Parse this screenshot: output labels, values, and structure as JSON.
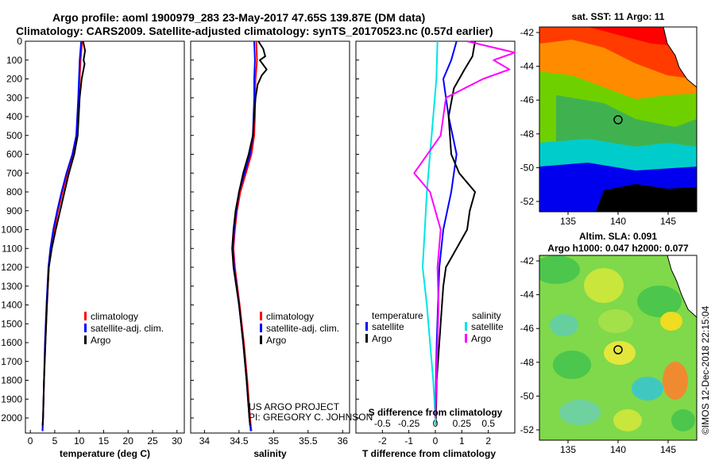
{
  "titles": {
    "line1": "Argo profile: aoml 1900979_283 23-May-2017 47.65S 139.87E (DM data)",
    "line2": "Climatology: CARS2009. Satellite-adjusted climatology: synTS_20170523.nc (0.57d earlier)"
  },
  "colors": {
    "climatology": "#ff0000",
    "satellite": "#0000ff",
    "argo": "#000000",
    "sat_salinity": "#00e5e5",
    "argo_salinity": "#ff00ff"
  },
  "depth_ticks": [
    "0",
    "100",
    "200",
    "300",
    "400",
    "500",
    "600",
    "700",
    "800",
    "900",
    "1000",
    "1100",
    "1200",
    "1300",
    "1400",
    "1500",
    "1600",
    "1700",
    "1800",
    "1900",
    "2000"
  ],
  "chart_data": [
    {
      "type": "line",
      "id": "temperature",
      "xlabel": "temperature (deg C)",
      "xlim": [
        -1,
        31.5
      ],
      "ylim": [
        0,
        2080
      ],
      "xticks": [
        0,
        5,
        10,
        15,
        20,
        25,
        30
      ],
      "legend": {
        "placement": "bottom-right",
        "entries": [
          "climatology",
          "satellite-adj. clim.",
          "Argo"
        ]
      },
      "series": [
        {
          "name": "climatology",
          "depth": [
            0,
            100,
            300,
            500,
            600,
            700,
            800,
            900,
            1000,
            1100,
            1200,
            1400,
            1600,
            1800,
            2000,
            2070
          ],
          "values": [
            10.6,
            10.3,
            9.9,
            9.5,
            8.8,
            7.6,
            6.6,
            5.7,
            4.9,
            4.2,
            3.8,
            3.4,
            3.1,
            2.8,
            2.6,
            2.5
          ]
        },
        {
          "name": "satellite-adj. clim.",
          "depth": [
            0,
            100,
            300,
            500,
            600,
            700,
            800,
            900,
            1000,
            1100,
            1200,
            1400,
            1600,
            1800,
            2000,
            2070
          ],
          "values": [
            10.4,
            10.1,
            9.8,
            9.4,
            8.6,
            7.4,
            6.4,
            5.5,
            4.7,
            4.1,
            3.7,
            3.3,
            3.0,
            2.8,
            2.6,
            2.5
          ]
        },
        {
          "name": "Argo",
          "depth": [
            0,
            50,
            100,
            120,
            200,
            300,
            500,
            600,
            700,
            800,
            900,
            1000,
            1100,
            1200,
            1400,
            1600,
            1800,
            2000,
            2040
          ],
          "values": [
            10.8,
            11.2,
            10.9,
            11.1,
            10.5,
            10.1,
            9.7,
            9.0,
            7.9,
            7.0,
            6.1,
            5.2,
            4.4,
            3.8,
            3.4,
            3.1,
            2.8,
            2.6,
            2.5
          ]
        }
      ]
    },
    {
      "type": "line",
      "id": "salinity",
      "xlabel": "salinity",
      "xlim": [
        33.8,
        36.1
      ],
      "ylim": [
        0,
        2080
      ],
      "xticks": [
        34,
        34.5,
        35,
        35.5,
        36
      ],
      "xticklabels": [
        "34",
        "34.5",
        "35",
        "35.5",
        "36"
      ],
      "legend": {
        "placement": "bottom-right",
        "entries": [
          "climatology",
          "satellite-adj. clim.",
          "Argo"
        ]
      },
      "series": [
        {
          "name": "climatology",
          "depth": [
            0,
            100,
            200,
            300,
            400,
            500,
            600,
            700,
            800,
            900,
            1000,
            1100,
            1200,
            1400,
            1600,
            1800,
            2000,
            2070
          ],
          "values": [
            34.75,
            34.76,
            34.74,
            34.73,
            34.73,
            34.72,
            34.68,
            34.6,
            34.52,
            34.47,
            34.44,
            34.42,
            34.44,
            34.51,
            34.57,
            34.62,
            34.66,
            34.68
          ]
        },
        {
          "name": "satellite-adj. clim.",
          "depth": [
            0,
            100,
            200,
            300,
            400,
            500,
            600,
            700,
            800,
            900,
            1000,
            1100,
            1200,
            1400,
            1600,
            1800,
            2000,
            2070
          ],
          "values": [
            34.72,
            34.73,
            34.72,
            34.72,
            34.71,
            34.7,
            34.66,
            34.58,
            34.5,
            34.46,
            34.43,
            34.41,
            34.43,
            34.5,
            34.56,
            34.61,
            34.65,
            34.67
          ]
        },
        {
          "name": "Argo",
          "depth": [
            0,
            40,
            80,
            100,
            150,
            180,
            230,
            300,
            400,
            500,
            600,
            700,
            800,
            900,
            1000,
            1100,
            1200,
            1400,
            1600,
            1800,
            2000,
            2040
          ],
          "values": [
            34.78,
            34.85,
            34.88,
            34.8,
            34.9,
            34.83,
            34.77,
            34.74,
            34.72,
            34.7,
            34.64,
            34.56,
            34.5,
            34.45,
            34.42,
            34.4,
            34.42,
            34.5,
            34.56,
            34.61,
            34.65,
            34.66
          ]
        }
      ]
    },
    {
      "type": "line",
      "id": "difference",
      "xlabel": "T difference from climatology",
      "xlabel_top": "S difference from climatology",
      "xlim": [
        -3,
        3
      ],
      "ylim": [
        0,
        2080
      ],
      "xticks": [
        -2,
        -1,
        0,
        1,
        2
      ],
      "xticks_top": [
        -0.5,
        -0.25,
        0,
        0.25,
        0.5
      ],
      "xticks_top_labels": [
        "-0.5",
        "-0.25",
        "0",
        "0.25",
        "0.5"
      ],
      "legend": {
        "placement": "bottom",
        "temperature_heading": "temperature",
        "salinity_heading": "salinity",
        "entries": [
          "satellite",
          "Argo",
          "satellite",
          "Argo"
        ]
      },
      "series": [
        {
          "name": "temperature satellite",
          "depth": [
            0,
            100,
            200,
            400,
            600,
            800,
            1000,
            1200,
            1400,
            1600,
            1800,
            2000,
            2040
          ],
          "values": [
            0.8,
            0.6,
            0.3,
            0.5,
            0.8,
            0.6,
            0.3,
            0.15,
            0.1,
            0.05,
            0.02,
            0.0,
            0.0
          ]
        },
        {
          "name": "temperature Argo",
          "depth": [
            0,
            80,
            150,
            250,
            400,
            600,
            700,
            800,
            900,
            1000,
            1100,
            1200,
            1300,
            1400,
            1600,
            1800,
            2000,
            2040
          ],
          "values": [
            1.5,
            1.4,
            1.1,
            0.7,
            0.5,
            0.6,
            0.9,
            1.5,
            1.3,
            1.2,
            0.8,
            0.4,
            0.3,
            0.25,
            0.15,
            0.05,
            0.02,
            0.0
          ]
        },
        {
          "name": "salinity satellite",
          "depth": [
            0,
            200,
            400,
            600,
            800,
            1000,
            1200,
            1400,
            1600,
            1800,
            2000,
            2040
          ],
          "values": [
            0.02,
            0.01,
            -0.02,
            -0.05,
            -0.08,
            -0.1,
            -0.12,
            -0.08,
            -0.05,
            -0.02,
            0.0,
            0.0
          ]
        },
        {
          "name": "salinity Argo",
          "depth": [
            0,
            60,
            100,
            150,
            200,
            300,
            500,
            700,
            800,
            1000,
            1200,
            1400,
            1600,
            1800,
            2000
          ],
          "values": [
            0.3,
            0.75,
            0.55,
            0.7,
            0.45,
            0.1,
            0.05,
            -0.2,
            -0.05,
            0.05,
            0.02,
            0.03,
            0.02,
            0.01,
            0.0
          ]
        }
      ]
    }
  ],
  "notes": {
    "project": "US ARGO PROJECT",
    "pi": "PI: GREGORY C. JOHNSON",
    "footer_s": "S difference from climatology",
    "stamp": "©IMOS 12-Dec-2018 22:15:04"
  },
  "maps": {
    "sst": {
      "title": "sat. SST: 11 Argo: 11",
      "lat_ticks": [
        "-42",
        "-44",
        "-46",
        "-48",
        "-50",
        "-52"
      ],
      "lon_ticks": [
        "135",
        "140",
        "145"
      ]
    },
    "sla": {
      "title1": "Altim. SLA: 0.091",
      "title2": "Argo h1000: 0.047 h2000: 0.077",
      "lat_ticks": [
        "-42",
        "-44",
        "-46",
        "-48",
        "-50",
        "-52"
      ],
      "lon_ticks": [
        "135",
        "140",
        "145"
      ]
    }
  }
}
